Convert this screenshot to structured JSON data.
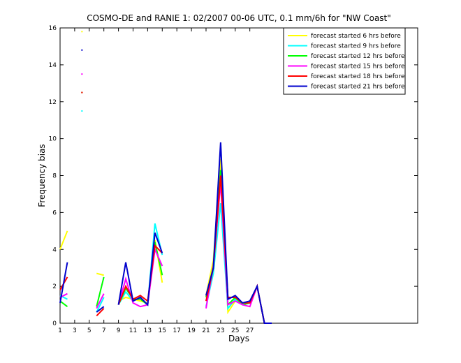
{
  "chart_data": {
    "type": "line",
    "title": "COSMO-DE and RANIE 1: 02/2007 00-06 UTC, 0.1 mm/6h for \"NW Coast\"",
    "xlabel": "Days",
    "ylabel": "Frequency bias",
    "xlim": [
      1,
      50
    ],
    "ylim": [
      0,
      16
    ],
    "xticks": [
      1,
      3,
      5,
      7,
      9,
      11,
      13,
      15,
      17,
      19,
      21,
      23,
      25,
      27
    ],
    "yticks": [
      0,
      2,
      4,
      6,
      8,
      10,
      12,
      14,
      16
    ],
    "grid": false,
    "legend_position": "top-right",
    "series": [
      {
        "name": "forecast started 6 hrs before",
        "color": "#ffff00",
        "values": [
          [
            1,
            4.0
          ],
          [
            2,
            5.0
          ],
          [
            4,
            15.8
          ],
          [
            6,
            2.7
          ],
          [
            7,
            2.6
          ],
          [
            9,
            1.2
          ],
          [
            10,
            1.4
          ],
          [
            11,
            1.3
          ],
          [
            12,
            1.2
          ],
          [
            13,
            1.1
          ],
          [
            14,
            4.5
          ],
          [
            15,
            2.2
          ],
          [
            21,
            1.5
          ],
          [
            22,
            3.4
          ],
          [
            23,
            8.9
          ],
          [
            24,
            0.6
          ],
          [
            25,
            1.2
          ],
          [
            26,
            1.1
          ],
          [
            27,
            1.1
          ],
          [
            28,
            2.0
          ],
          [
            29,
            0.0
          ],
          [
            30,
            0.0
          ]
        ]
      },
      {
        "name": "forecast started 9 hrs before",
        "color": "#00ffff",
        "values": [
          [
            1,
            1.5
          ],
          [
            2,
            1.3
          ],
          [
            4,
            11.5
          ],
          [
            6,
            0.6
          ],
          [
            7,
            1.4
          ],
          [
            9,
            1.0
          ],
          [
            10,
            1.7
          ],
          [
            11,
            1.2
          ],
          [
            12,
            1.4
          ],
          [
            13,
            1.0
          ],
          [
            14,
            5.4
          ],
          [
            15,
            3.7
          ],
          [
            21,
            0.9
          ],
          [
            22,
            2.7
          ],
          [
            23,
            6.5
          ],
          [
            24,
            0.8
          ],
          [
            25,
            1.3
          ],
          [
            26,
            1.0
          ],
          [
            27,
            1.1
          ],
          [
            28,
            2.0
          ],
          [
            29,
            0.0
          ],
          [
            30,
            0.0
          ]
        ]
      },
      {
        "name": "forecast started 12 hrs before",
        "color": "#00ff00",
        "values": [
          [
            1,
            1.2
          ],
          [
            2,
            0.9
          ],
          [
            4,
            12.5
          ],
          [
            6,
            0.9
          ],
          [
            7,
            2.5
          ],
          [
            9,
            1.0
          ],
          [
            10,
            1.9
          ],
          [
            11,
            1.3
          ],
          [
            12,
            1.3
          ],
          [
            13,
            1.0
          ],
          [
            14,
            4.4
          ],
          [
            15,
            2.6
          ],
          [
            21,
            1.4
          ],
          [
            22,
            3.0
          ],
          [
            23,
            8.3
          ],
          [
            24,
            1.0
          ],
          [
            25,
            1.4
          ],
          [
            26,
            1.0
          ],
          [
            27,
            1.1
          ],
          [
            28,
            2.0
          ],
          [
            29,
            0.0
          ],
          [
            30,
            0.0
          ]
        ]
      },
      {
        "name": "forecast started 15 hrs before",
        "color": "#ff00ff",
        "values": [
          [
            1,
            1.4
          ],
          [
            2,
            1.6
          ],
          [
            4,
            13.5
          ],
          [
            6,
            0.8
          ],
          [
            7,
            1.6
          ],
          [
            9,
            1.0
          ],
          [
            10,
            2.4
          ],
          [
            11,
            1.1
          ],
          [
            12,
            0.9
          ],
          [
            13,
            1.0
          ],
          [
            14,
            4.0
          ],
          [
            15,
            3.1
          ],
          [
            21,
            0.8
          ],
          [
            22,
            3.1
          ],
          [
            23,
            7.6
          ],
          [
            24,
            1.0
          ],
          [
            25,
            1.2
          ],
          [
            26,
            1.0
          ],
          [
            27,
            0.9
          ],
          [
            28,
            2.0
          ],
          [
            29,
            0.0
          ],
          [
            30,
            0.0
          ]
        ]
      },
      {
        "name": "forecast started 18 hrs before",
        "color": "#ff0000",
        "values": [
          [
            1,
            1.8
          ],
          [
            2,
            2.5
          ],
          [
            4,
            12.5
          ],
          [
            6,
            0.4
          ],
          [
            7,
            0.8
          ],
          [
            9,
            1.0
          ],
          [
            10,
            2.0
          ],
          [
            11,
            1.3
          ],
          [
            12,
            1.5
          ],
          [
            13,
            1.2
          ],
          [
            14,
            4.2
          ],
          [
            15,
            3.8
          ],
          [
            21,
            1.2
          ],
          [
            22,
            3.0
          ],
          [
            23,
            8.0
          ],
          [
            24,
            1.4
          ],
          [
            25,
            1.4
          ],
          [
            26,
            1.1
          ],
          [
            27,
            1.1
          ],
          [
            28,
            2.0
          ],
          [
            29,
            0.0
          ],
          [
            30,
            0.0
          ]
        ]
      },
      {
        "name": "forecast started 21 hrs before",
        "color": "#0000cc",
        "values": [
          [
            1,
            1.1
          ],
          [
            2,
            3.3
          ],
          [
            4,
            14.8
          ],
          [
            6,
            0.6
          ],
          [
            7,
            0.9
          ],
          [
            9,
            1.0
          ],
          [
            10,
            3.3
          ],
          [
            11,
            1.2
          ],
          [
            12,
            1.4
          ],
          [
            13,
            1.0
          ],
          [
            14,
            4.9
          ],
          [
            15,
            3.8
          ],
          [
            21,
            1.5
          ],
          [
            22,
            3.0
          ],
          [
            23,
            9.8
          ],
          [
            24,
            1.3
          ],
          [
            25,
            1.5
          ],
          [
            26,
            1.1
          ],
          [
            27,
            1.2
          ],
          [
            28,
            2.0
          ],
          [
            29,
            0.0
          ],
          [
            30,
            0.0
          ]
        ]
      }
    ]
  }
}
